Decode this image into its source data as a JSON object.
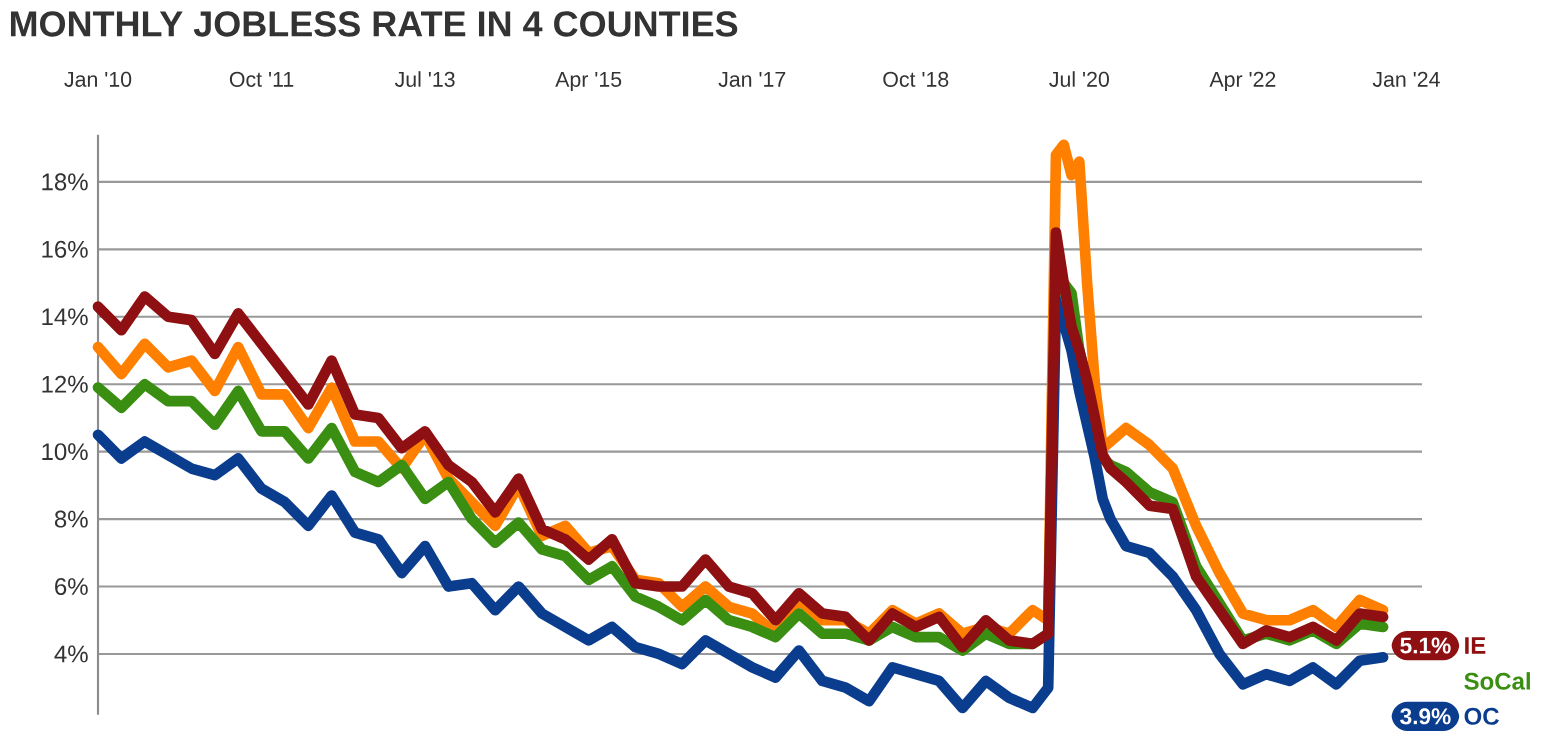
{
  "chart_data": {
    "type": "line",
    "title": "MONTHLY JOBLESS RATE IN 4 COUNTIES",
    "x": [
      "2010-01",
      "2010-04",
      "2010-07",
      "2010-10",
      "2011-01",
      "2011-04",
      "2011-07",
      "2011-10",
      "2012-01",
      "2012-04",
      "2012-07",
      "2012-10",
      "2013-01",
      "2013-04",
      "2013-07",
      "2013-10",
      "2014-01",
      "2014-04",
      "2014-07",
      "2014-10",
      "2015-01",
      "2015-04",
      "2015-07",
      "2015-10",
      "2016-01",
      "2016-04",
      "2016-07",
      "2016-10",
      "2017-01",
      "2017-04",
      "2017-07",
      "2017-10",
      "2018-01",
      "2018-04",
      "2018-07",
      "2018-10",
      "2019-01",
      "2019-04",
      "2019-07",
      "2019-10",
      "2020-01",
      "2020-03",
      "2020-04",
      "2020-05",
      "2020-06",
      "2020-07",
      "2020-08",
      "2020-09",
      "2020-10",
      "2020-11",
      "2021-01",
      "2021-04",
      "2021-07",
      "2021-10",
      "2022-01",
      "2022-04",
      "2022-07",
      "2022-10",
      "2023-01",
      "2023-04",
      "2023-07",
      "2023-10"
    ],
    "series": [
      {
        "color": "#ff8000",
        "values": [
          13.1,
          12.3,
          13.2,
          12.5,
          12.7,
          11.8,
          13.1,
          11.7,
          11.7,
          10.7,
          11.9,
          10.3,
          10.3,
          9.5,
          10.5,
          9.2,
          8.5,
          7.8,
          9.0,
          7.5,
          7.8,
          7.0,
          7.2,
          6.2,
          6.1,
          5.4,
          6.0,
          5.4,
          5.2,
          4.6,
          5.6,
          5.0,
          5.0,
          4.6,
          5.3,
          4.9,
          5.2,
          4.6,
          4.8,
          4.6,
          5.3,
          5.0,
          18.8,
          19.1,
          18.2,
          18.6,
          15.0,
          12.0,
          10.1,
          10.3,
          10.7,
          10.2,
          9.5,
          7.8,
          6.4,
          5.2,
          5.0,
          5.0,
          5.3,
          4.8,
          5.6,
          5.3
        ]
      },
      {
        "name": "SoCal",
        "color": "#3a8f12",
        "values": [
          11.9,
          11.3,
          12.0,
          11.5,
          11.5,
          10.8,
          11.8,
          10.6,
          10.6,
          9.8,
          10.7,
          9.4,
          9.1,
          9.6,
          8.6,
          9.1,
          8.0,
          7.3,
          7.9,
          7.1,
          6.9,
          6.2,
          6.6,
          5.7,
          5.4,
          5.0,
          5.6,
          5.0,
          4.8,
          4.5,
          5.2,
          4.6,
          4.6,
          4.4,
          4.8,
          4.5,
          4.5,
          4.1,
          4.6,
          4.3,
          4.3,
          4.6,
          15.3,
          15.0,
          14.7,
          13.0,
          12.0,
          10.8,
          9.8,
          9.6,
          9.4,
          8.8,
          8.5,
          6.6,
          5.5,
          4.4,
          4.6,
          4.4,
          4.7,
          4.3,
          4.9,
          4.8
        ]
      },
      {
        "name": "OC",
        "color": "#0b3d8f",
        "values": [
          10.5,
          9.8,
          10.3,
          9.9,
          9.5,
          9.3,
          9.8,
          8.9,
          8.5,
          7.8,
          8.7,
          7.6,
          7.4,
          6.4,
          7.2,
          6.0,
          6.1,
          5.3,
          6.0,
          5.2,
          4.8,
          4.4,
          4.8,
          4.2,
          4.0,
          3.7,
          4.4,
          4.0,
          3.6,
          3.3,
          4.1,
          3.2,
          3.0,
          2.6,
          3.6,
          3.4,
          3.2,
          2.4,
          3.2,
          2.7,
          2.4,
          3.0,
          14.5,
          13.8,
          13.0,
          11.8,
          10.8,
          9.8,
          8.6,
          8.0,
          7.2,
          7.0,
          6.3,
          5.3,
          4.0,
          3.1,
          3.4,
          3.2,
          3.6,
          3.1,
          3.8,
          3.9
        ]
      },
      {
        "name": "IE",
        "color": "#8e1012",
        "values": [
          14.3,
          13.6,
          14.6,
          14.0,
          13.9,
          12.9,
          14.1,
          13.2,
          12.3,
          11.4,
          12.7,
          11.1,
          11.0,
          10.1,
          10.6,
          9.6,
          9.1,
          8.2,
          9.2,
          7.7,
          7.4,
          6.8,
          7.4,
          6.1,
          6.0,
          6.0,
          6.8,
          6.0,
          5.8,
          5.0,
          5.8,
          5.2,
          5.1,
          4.4,
          5.2,
          4.8,
          5.1,
          4.2,
          5.0,
          4.4,
          4.3,
          4.6,
          16.5,
          15.0,
          13.7,
          13.0,
          12.1,
          11.0,
          9.9,
          9.5,
          9.1,
          8.4,
          8.3,
          6.3,
          5.3,
          4.3,
          4.7,
          4.5,
          4.8,
          4.4,
          5.2,
          5.1
        ]
      }
    ],
    "xlim": [
      "2010-01",
      "2024-03"
    ],
    "xticks": [
      {
        "value": "2010-01",
        "label": "Jan '10"
      },
      {
        "value": "2011-10",
        "label": "Oct '11"
      },
      {
        "value": "2013-07",
        "label": "Jul '13"
      },
      {
        "value": "2015-04",
        "label": "Apr '15"
      },
      {
        "value": "2017-01",
        "label": "Jan '17"
      },
      {
        "value": "2018-10",
        "label": "Oct '18"
      },
      {
        "value": "2020-07",
        "label": "Jul '20"
      },
      {
        "value": "2022-04",
        "label": "Apr '22"
      },
      {
        "value": "2024-01",
        "label": "Jan '24"
      }
    ],
    "ylim": [
      2.2,
      19.4
    ],
    "yticks": [
      {
        "value": 4,
        "label": "4%"
      },
      {
        "value": 6,
        "label": "6%"
      },
      {
        "value": 8,
        "label": "8%"
      },
      {
        "value": 10,
        "label": "10%"
      },
      {
        "value": 12,
        "label": "12%"
      },
      {
        "value": 14,
        "label": "14%"
      },
      {
        "value": 16,
        "label": "16%"
      },
      {
        "value": 18,
        "label": "18%"
      }
    ],
    "annotations": [
      {
        "text": "5.1%",
        "x": "2023-10",
        "y": 5.1
      },
      {
        "text": "3.9%",
        "x": "2023-10",
        "y": 3.9
      }
    ],
    "grid": "y",
    "legend": "right",
    "marker": "none",
    "line_style": "solid"
  }
}
